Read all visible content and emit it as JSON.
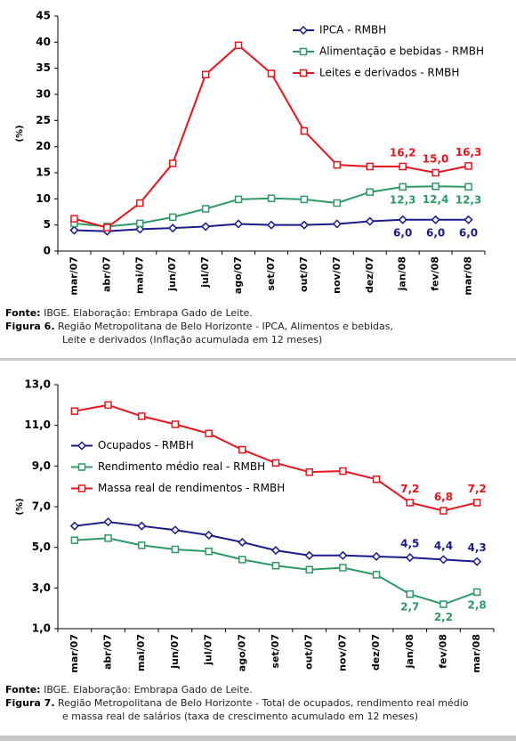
{
  "chart_data": [
    {
      "type": "line",
      "y_label": "(%)",
      "categories": [
        "mar/07",
        "abr/07",
        "mai/07",
        "jun/07",
        "jul/07",
        "ago/07",
        "set/07",
        "out/07",
        "nov/07",
        "dez/07",
        "jan/08",
        "fev/08",
        "mar/08"
      ],
      "ylim": [
        0,
        45
      ],
      "yticks": [
        0,
        5,
        10,
        15,
        20,
        25,
        30,
        35,
        40,
        45
      ],
      "grid": false,
      "legend": "upper right",
      "series": [
        {
          "name": "IPCA - RMBH",
          "color": "#1a1a8c",
          "marker": "diamond",
          "values": [
            4.0,
            3.8,
            4.2,
            4.4,
            4.7,
            5.2,
            5.0,
            5.0,
            5.2,
            5.7,
            6.0,
            6.0,
            6.0
          ],
          "value_labels": [
            null,
            null,
            null,
            null,
            null,
            null,
            null,
            null,
            null,
            null,
            "6,0",
            "6,0",
            "6,0"
          ]
        },
        {
          "name": "Alimentação e bebidas - RMBH",
          "color": "#2e9966",
          "marker": "square",
          "values": [
            5.3,
            4.7,
            5.3,
            6.5,
            8.1,
            9.9,
            10.1,
            9.9,
            9.2,
            11.3,
            12.3,
            12.4,
            12.3
          ],
          "value_labels": [
            null,
            null,
            null,
            null,
            null,
            null,
            null,
            null,
            null,
            null,
            "12,3",
            "12,4",
            "12,3"
          ]
        },
        {
          "name": "Leites e derivados - RMBH",
          "color": "#e8141c",
          "marker": "square",
          "values": [
            6.2,
            4.5,
            9.2,
            16.8,
            33.8,
            39.4,
            34.0,
            23.0,
            16.5,
            16.2,
            16.2,
            15.0,
            16.3
          ],
          "value_labels": [
            null,
            null,
            null,
            null,
            null,
            null,
            null,
            null,
            null,
            null,
            "16,2",
            "15,0",
            "16,3"
          ]
        }
      ]
    },
    {
      "type": "line",
      "y_label": "(%)",
      "categories": [
        "mar/07",
        "abr/07",
        "mai/07",
        "jun/07",
        "jul/07",
        "ago/07",
        "set/07",
        "out/07",
        "nov/07",
        "dez/07",
        "jan/08",
        "fev/08",
        "mar/08"
      ],
      "ylim": [
        1,
        13
      ],
      "yticks": [
        {
          "value": 1,
          "label": "1,0"
        },
        {
          "value": 3,
          "label": "3,0"
        },
        {
          "value": 5,
          "label": "5,0"
        },
        {
          "value": 7,
          "label": "7,0"
        },
        {
          "value": 9,
          "label": "9,0"
        },
        {
          "value": 11,
          "label": "11,0"
        },
        {
          "value": 13,
          "label": "13,0"
        }
      ],
      "grid": false,
      "legend": "center left",
      "series": [
        {
          "name": "Ocupados - RMBH",
          "color": "#1a1a8c",
          "marker": "diamond",
          "values": [
            6.05,
            6.25,
            6.05,
            5.85,
            5.6,
            5.25,
            4.85,
            4.6,
            4.6,
            4.55,
            4.5,
            4.4,
            4.3
          ],
          "value_labels": [
            null,
            null,
            null,
            null,
            null,
            null,
            null,
            null,
            null,
            null,
            "4,5",
            "4,4",
            "4,3"
          ]
        },
        {
          "name": "Rendimento médio real - RMBH",
          "color": "#2e9966",
          "marker": "square",
          "values": [
            5.35,
            5.45,
            5.1,
            4.9,
            4.8,
            4.4,
            4.1,
            3.9,
            4.0,
            3.65,
            2.7,
            2.2,
            2.8
          ],
          "value_labels": [
            null,
            null,
            null,
            null,
            null,
            null,
            null,
            null,
            null,
            null,
            "2,7",
            "2,2",
            "2,8"
          ]
        },
        {
          "name": "Massa real de rendimentos - RMBH",
          "color": "#e8141c",
          "marker": "square",
          "values": [
            11.7,
            12.0,
            11.45,
            11.05,
            10.6,
            9.8,
            9.15,
            8.7,
            8.75,
            8.35,
            7.2,
            6.8,
            7.2
          ],
          "value_labels": [
            null,
            null,
            null,
            null,
            null,
            null,
            null,
            null,
            null,
            null,
            "7,2",
            "6,8",
            "7,2"
          ]
        }
      ]
    }
  ],
  "figures": [
    {
      "source_label": "Fonte:",
      "source": "IBGE. Elaboração: Embrapa Gado de Leite.",
      "figure_label": "Figura 6.",
      "caption_lines": [
        "Região Metropolitana de Belo Horizonte - IPCA, Alimentos e bebidas,",
        "Leite e derivados (Inflação acumulada em 12 meses)"
      ]
    },
    {
      "source_label": "Fonte:",
      "source": "IBGE. Elaboração: Embrapa Gado de Leite.",
      "figure_label": "Figura 7.",
      "caption_lines": [
        "Região Metropolitana de Belo Horizonte - Total de ocupados, rendimento real médio",
        "e massa real de salários (taxa de crescimento acumulado em 12 meses)"
      ]
    }
  ]
}
